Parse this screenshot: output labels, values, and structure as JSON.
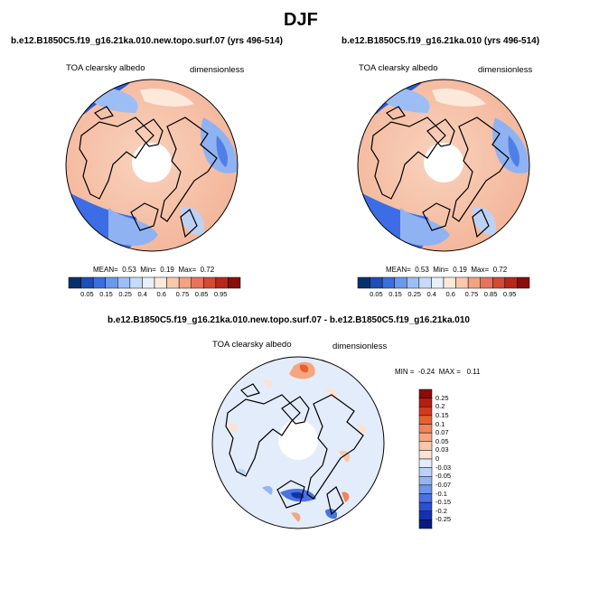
{
  "figure": {
    "season_title": "DJF"
  },
  "panels": [
    {
      "case_title": "b.e12.B1850C5.f19_g16.21ka.010.new.topo.surf.07 (yrs 496-514)",
      "variable": "TOA clearsky albedo",
      "units": "dimensionless",
      "stats": {
        "mean_label": "MEAN=",
        "mean": "0.53",
        "min_label": "Min=",
        "min": "0.19",
        "max_label": "Max=",
        "max": "0.72"
      }
    },
    {
      "case_title": "b.e12.B1850C5.f19_g16.21ka.010 (yrs 496-514)",
      "variable": "TOA clearsky albedo",
      "units": "dimensionless",
      "stats": {
        "mean_label": "MEAN=",
        "mean": "0.53",
        "min_label": "Min=",
        "min": "0.19",
        "max_label": "Max=",
        "max": "0.72"
      }
    },
    {
      "case_title": "b.e12.B1850C5.f19_g16.21ka.010.new.topo.surf.07 - b.e12.B1850C5.f19_g16.21ka.010",
      "variable": "TOA clearsky albedo",
      "units": "dimensionless",
      "stats": {
        "min_label": "MIN =",
        "min": "-0.24",
        "max_label": "MAX =",
        "max": "0.11"
      }
    }
  ],
  "colorbars": {
    "absolute": {
      "labels": [
        "0.05",
        "0.15",
        "0.25",
        "0.4",
        "0.6",
        "0.75",
        "0.85",
        "0.95"
      ],
      "colors": [
        "#08306b",
        "#1c4fb8",
        "#3a6fe0",
        "#6a98ee",
        "#9dbef5",
        "#c7daf9",
        "#e8f0fc",
        "#fde9dc",
        "#f9c9ad",
        "#f3a37f",
        "#e9735a",
        "#d44a33",
        "#b8281a",
        "#8a0e0a"
      ]
    },
    "difference": {
      "labels": [
        "0.25",
        "0.2",
        "0.15",
        "0.1",
        "0.07",
        "0.05",
        "0.03",
        "0",
        "-0.03",
        "-0.05",
        "-0.07",
        "-0.1",
        "-0.15",
        "-0.2",
        "-0.25"
      ],
      "colors": [
        "#8c0c08",
        "#b51d12",
        "#d43a1f",
        "#e8602f",
        "#f2845a",
        "#f5a680",
        "#f8c6a8",
        "#fbe2d3",
        "#e3ecfb",
        "#bcd1f6",
        "#94b5f0",
        "#6f95ea",
        "#4a72e3",
        "#2b4fd4",
        "#1631b0",
        "#0a1a85"
      ]
    }
  }
}
